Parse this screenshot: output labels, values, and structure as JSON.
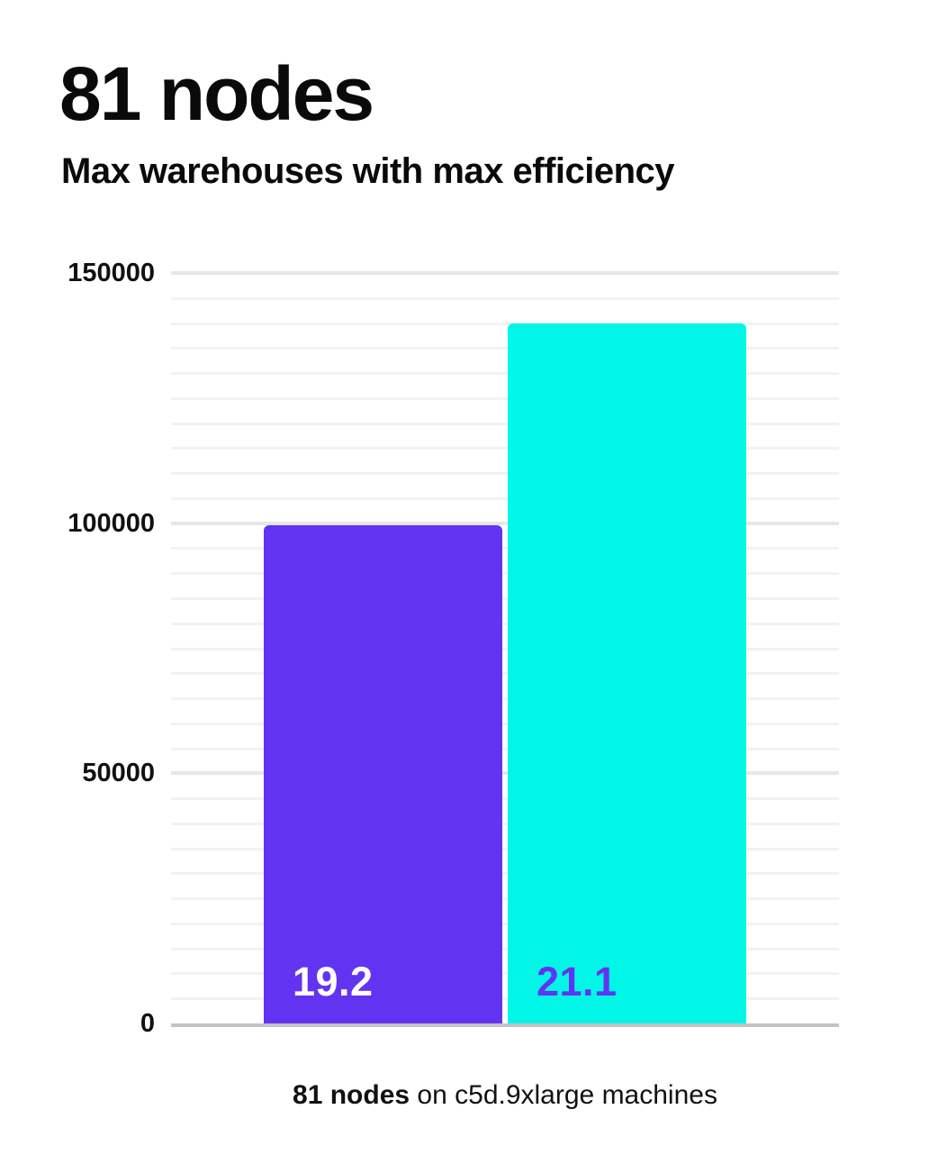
{
  "header": {
    "title": "81 nodes",
    "subtitle": "Max warehouses with max efficiency"
  },
  "chart_data": {
    "type": "bar",
    "title": "81 nodes",
    "subtitle": "Max warehouses with max efficiency",
    "categories": [
      "19.2",
      "21.1"
    ],
    "series": [
      {
        "name": "bar-1",
        "label": "19.2",
        "value": 99500,
        "color": "#6333F2",
        "label_color": "#ffffff"
      },
      {
        "name": "bar-2",
        "label": "21.1",
        "value": 140000,
        "color": "#00F7E7",
        "label_color": "#6333F2"
      }
    ],
    "xlabel": "",
    "ylabel": "",
    "ylim": [
      0,
      150000
    ],
    "yticks": [
      0,
      50000,
      100000,
      150000
    ],
    "ytick_labels": [
      "0",
      "50000",
      "100000",
      "150000"
    ],
    "minor_grid_step": 5000,
    "grid": true,
    "legend": false,
    "value_labels_position": "inside-bottom-left"
  },
  "caption": {
    "highlight": "81 nodes",
    "text": " on c5d.9xlarge machines"
  },
  "colors": {
    "purple": "#6333F2",
    "cyan": "#00F7E7",
    "axis_line": "#c3c3c3",
    "major_grid": "#e7e7e7",
    "minor_grid": "#f2f2f2",
    "text": "#0a0a0a"
  }
}
